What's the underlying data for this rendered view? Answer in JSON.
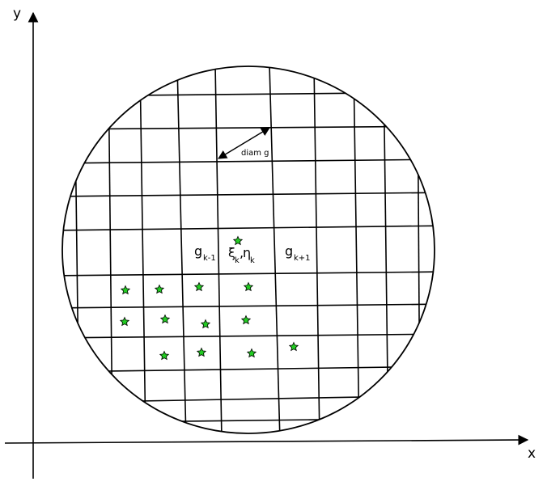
{
  "axes": {
    "x_label": "x",
    "y_label": "y"
  },
  "labels": {
    "diam": "diam g",
    "g_prev": {
      "base": "g",
      "sub": "k-1"
    },
    "g_next": {
      "base": "g",
      "sub": "k+1"
    },
    "xi_eta": {
      "xi": "ξ",
      "xi_sub": "k",
      "sep": ",",
      "eta": "η",
      "eta_sub": "k"
    }
  },
  "colors": {
    "star": "#22cc22",
    "line": "#000000"
  }
}
